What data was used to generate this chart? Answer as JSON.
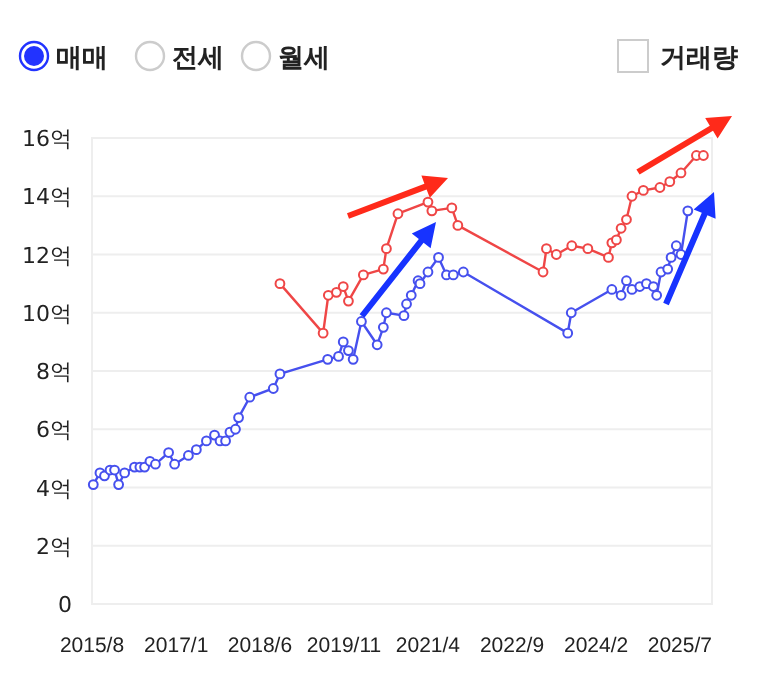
{
  "chart_data": {
    "type": "line",
    "marker": "circle",
    "grid": "y",
    "annotations": [
      "매매",
      "전세",
      "월세",
      "거래량"
    ],
    "xlim": [
      "2015-08-01",
      "2026-01-15"
    ],
    "xticks": [
      {
        "value": "2015-08",
        "label": "2015/8"
      },
      {
        "value": "2017-01",
        "label": "2017/1"
      },
      {
        "value": "2018-06",
        "label": "2018/6"
      },
      {
        "value": "2019-11",
        "label": "2019/11"
      },
      {
        "value": "2021-04",
        "label": "2021/4"
      },
      {
        "value": "2022-09",
        "label": "2022/9"
      },
      {
        "value": "2024-02",
        "label": "2024/2"
      },
      {
        "value": "2025-07",
        "label": "2025/7"
      }
    ],
    "ylim": [
      0,
      16
    ],
    "yticks": [
      0,
      {
        "value": 2,
        "label": "2억"
      },
      {
        "value": 4,
        "label": "4억"
      },
      {
        "value": 6,
        "label": "6억"
      },
      {
        "value": 8,
        "label": "8억"
      },
      {
        "value": 10,
        "label": "10억"
      },
      {
        "value": 12,
        "label": "12억"
      },
      {
        "value": 14,
        "label": "14억"
      },
      {
        "value": 16,
        "label": "16억"
      }
    ],
    "series": [
      {
        "color": "#ef4646",
        "x": [
          "2018-10-02",
          "2019-06-25",
          "2019-07-27",
          "2019-09-15",
          "2019-10-27",
          "2019-11-28",
          "2020-02-28",
          "2020-06-30",
          "2020-07-19",
          "2020-09-28",
          "2021-04-01",
          "2021-04-25",
          "2021-08-26",
          "2021-10-02",
          "2023-03-11",
          "2023-04-01",
          "2023-06-01",
          "2023-09-04",
          "2023-12-12",
          "2024-04-17",
          "2024-05-08",
          "2024-06-05",
          "2024-07-04",
          "2024-08-06",
          "2024-09-09",
          "2024-11-18",
          "2025-02-28",
          "2025-04-30",
          "2025-07-08",
          "2025-10-11",
          "2025-11-23"
        ],
        "values": [
          11.0,
          9.3,
          10.6,
          10.7,
          10.9,
          10.4,
          11.3,
          11.5,
          12.2,
          13.4,
          13.8,
          13.5,
          13.6,
          13.0,
          11.4,
          12.2,
          12.0,
          12.3,
          12.2,
          11.9,
          12.4,
          12.5,
          12.9,
          13.2,
          14.0,
          14.2,
          14.3,
          14.5,
          14.8,
          15.4,
          15.4
        ]
      },
      {
        "color": "#4650ee",
        "x": [
          "2015-08-09",
          "2015-09-19",
          "2015-10-17",
          "2015-11-20",
          "2015-12-18",
          "2016-01-12",
          "2016-02-18",
          "2016-04-19",
          "2016-05-22",
          "2016-06-20",
          "2016-07-23",
          "2016-08-26",
          "2016-11-15",
          "2016-12-22",
          "2017-03-17",
          "2017-05-05",
          "2017-07-06",
          "2017-08-25",
          "2017-09-28",
          "2017-11-01",
          "2017-11-28",
          "2018-01-01",
          "2018-01-20",
          "2018-03-30",
          "2018-08-22",
          "2018-10-02",
          "2019-07-23",
          "2019-09-28",
          "2019-10-27",
          "2019-11-28",
          "2019-12-27",
          "2020-02-16",
          "2020-05-23",
          "2020-06-30",
          "2020-07-19",
          "2020-11-04",
          "2020-11-20",
          "2020-12-19",
          "2021-01-30",
          "2021-02-11",
          "2021-04-01",
          "2021-06-05",
          "2021-07-24",
          "2021-09-04",
          "2021-11-05",
          "2023-08-10",
          "2023-09-01",
          "2024-05-08",
          "2024-07-04",
          "2024-08-06",
          "2024-09-09",
          "2024-10-27",
          "2024-12-07",
          "2025-01-19",
          "2025-02-08",
          "2025-03-07",
          "2025-04-17",
          "2025-05-08",
          "2025-06-09",
          "2025-07-08",
          "2025-08-19"
        ],
        "values": [
          4.1,
          4.5,
          4.4,
          4.6,
          4.6,
          4.1,
          4.5,
          4.7,
          4.7,
          4.7,
          4.9,
          4.8,
          5.2,
          4.8,
          5.1,
          5.3,
          5.6,
          5.8,
          5.6,
          5.6,
          5.9,
          6.0,
          6.4,
          7.1,
          7.4,
          7.9,
          8.4,
          8.5,
          9.0,
          8.7,
          8.4,
          9.7,
          8.9,
          9.5,
          10.0,
          9.9,
          10.3,
          10.6,
          11.1,
          11.0,
          11.4,
          11.9,
          11.3,
          11.3,
          11.4,
          9.3,
          10.0,
          10.8,
          10.6,
          11.1,
          10.8,
          10.9,
          11.0,
          10.9,
          10.6,
          11.4,
          11.5,
          11.9,
          12.3,
          12.0,
          13.5
        ]
      }
    ]
  }
}
